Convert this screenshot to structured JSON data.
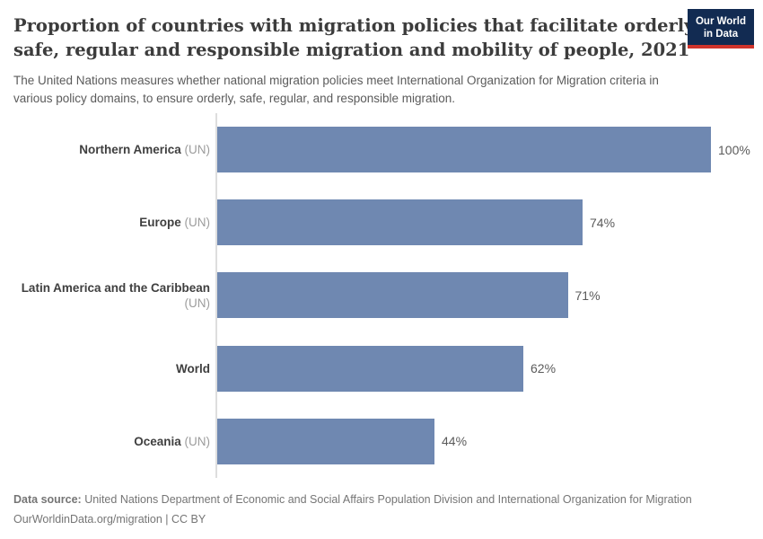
{
  "header": {
    "title_lines": [
      "Proportion of countries with migration policies that facilitate orderly,",
      "safe, regular and responsible migration and mobility of people, 2021"
    ],
    "subtitle": "The United Nations measures whether national migration policies meet International Organization for Migration criteria in various policy domains, to ensure orderly, safe, regular, and responsible migration.",
    "logo": {
      "line1": "Our World",
      "line2": "in Data",
      "bg_color": "#122b52",
      "stripe_color": "#d0342c"
    }
  },
  "chart_data": {
    "type": "bar",
    "orientation": "horizontal",
    "title": "Proportion of countries with migration policies that facilitate orderly, safe, regular and responsible migration and mobility of people, 2021",
    "xlabel": "",
    "ylabel": "",
    "xlim": [
      0,
      100
    ],
    "unit": "%",
    "grid": false,
    "legend": false,
    "bar_color": "#6f88b1",
    "axis_color": "#dedede",
    "categories": [
      "Northern America (UN)",
      "Europe (UN)",
      "Latin America and the Caribbean (UN)",
      "World",
      "Oceania (UN)"
    ],
    "values": [
      100,
      74,
      71,
      62,
      44
    ],
    "bars": [
      {
        "label": "Northern America",
        "suffix": " (UN)",
        "value": 100,
        "value_label": "100%"
      },
      {
        "label": "Europe",
        "suffix": " (UN)",
        "value": 74,
        "value_label": "74%"
      },
      {
        "label": "Latin America and the Caribbean",
        "suffix": " (UN)",
        "value": 71,
        "value_label": "71%"
      },
      {
        "label": "World",
        "suffix": "",
        "value": 62,
        "value_label": "62%"
      },
      {
        "label": "Oceania",
        "suffix": " (UN)",
        "value": 44,
        "value_label": "44%"
      }
    ]
  },
  "footer": {
    "source_label": "Data source:",
    "source_text": " United Nations Department of Economic and Social Affairs Population Division and International Organization for Migration",
    "license_line": "OurWorldinData.org/migration | CC BY"
  }
}
